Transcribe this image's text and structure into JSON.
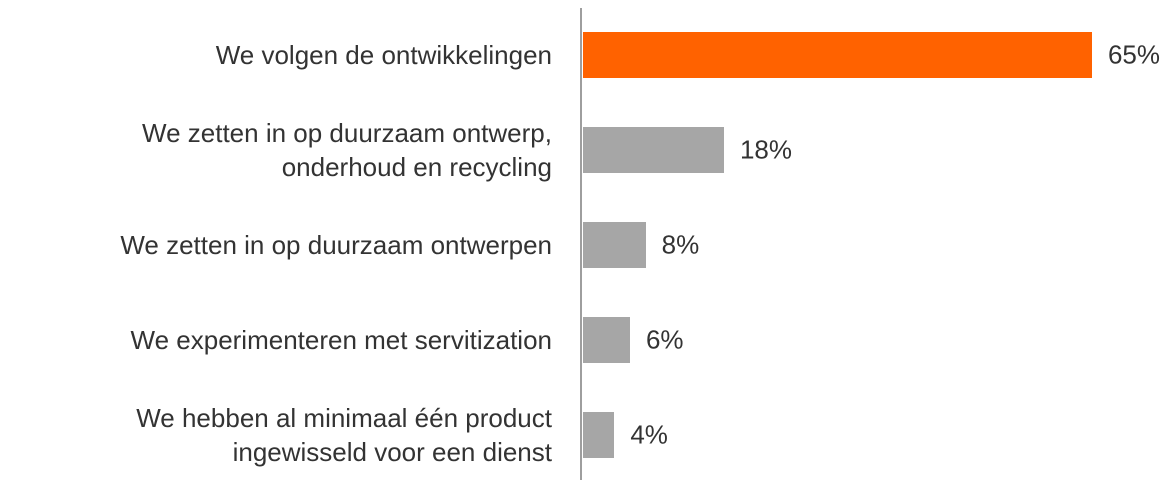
{
  "chart_data": {
    "type": "bar",
    "orientation": "horizontal",
    "categories": [
      "We volgen de ontwikkelingen",
      "We zetten in op duurzaam ontwerp,\nonderhoud en recycling",
      "We zetten in op duurzaam ontwerpen",
      "We experimenteren met servitization",
      "We hebben al minimaal één product\ningewisseld voor een dienst"
    ],
    "values": [
      65,
      18,
      8,
      6,
      4
    ],
    "value_labels": [
      "65%",
      "18%",
      "8%",
      "6%",
      "4%"
    ],
    "colors": [
      "#ff6200",
      "#a6a6a6",
      "#a6a6a6",
      "#a6a6a6",
      "#a6a6a6"
    ]
  }
}
